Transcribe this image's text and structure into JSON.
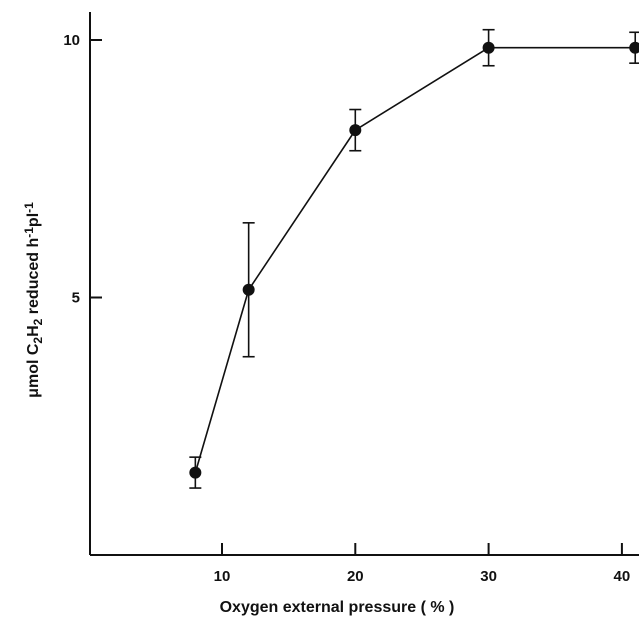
{
  "chart_data": {
    "type": "line",
    "title": "",
    "xlabel": "Oxygen external pressure ( % )",
    "ylabel_parts": [
      "μmol C",
      "2",
      "H",
      "2",
      " reduced h",
      "-1",
      "pl",
      "-1"
    ],
    "xlim": [
      0,
      41
    ],
    "ylim": [
      0,
      10.5
    ],
    "x_ticks": [
      10,
      20,
      30,
      40
    ],
    "y_ticks": [
      5,
      10
    ],
    "grid": false,
    "series": [
      {
        "x": [
          8,
          12,
          20,
          30,
          41
        ],
        "y": [
          1.6,
          5.15,
          8.25,
          9.85,
          9.85
        ],
        "err": [
          0.3,
          1.3,
          0.4,
          0.35,
          0.3
        ]
      }
    ]
  }
}
